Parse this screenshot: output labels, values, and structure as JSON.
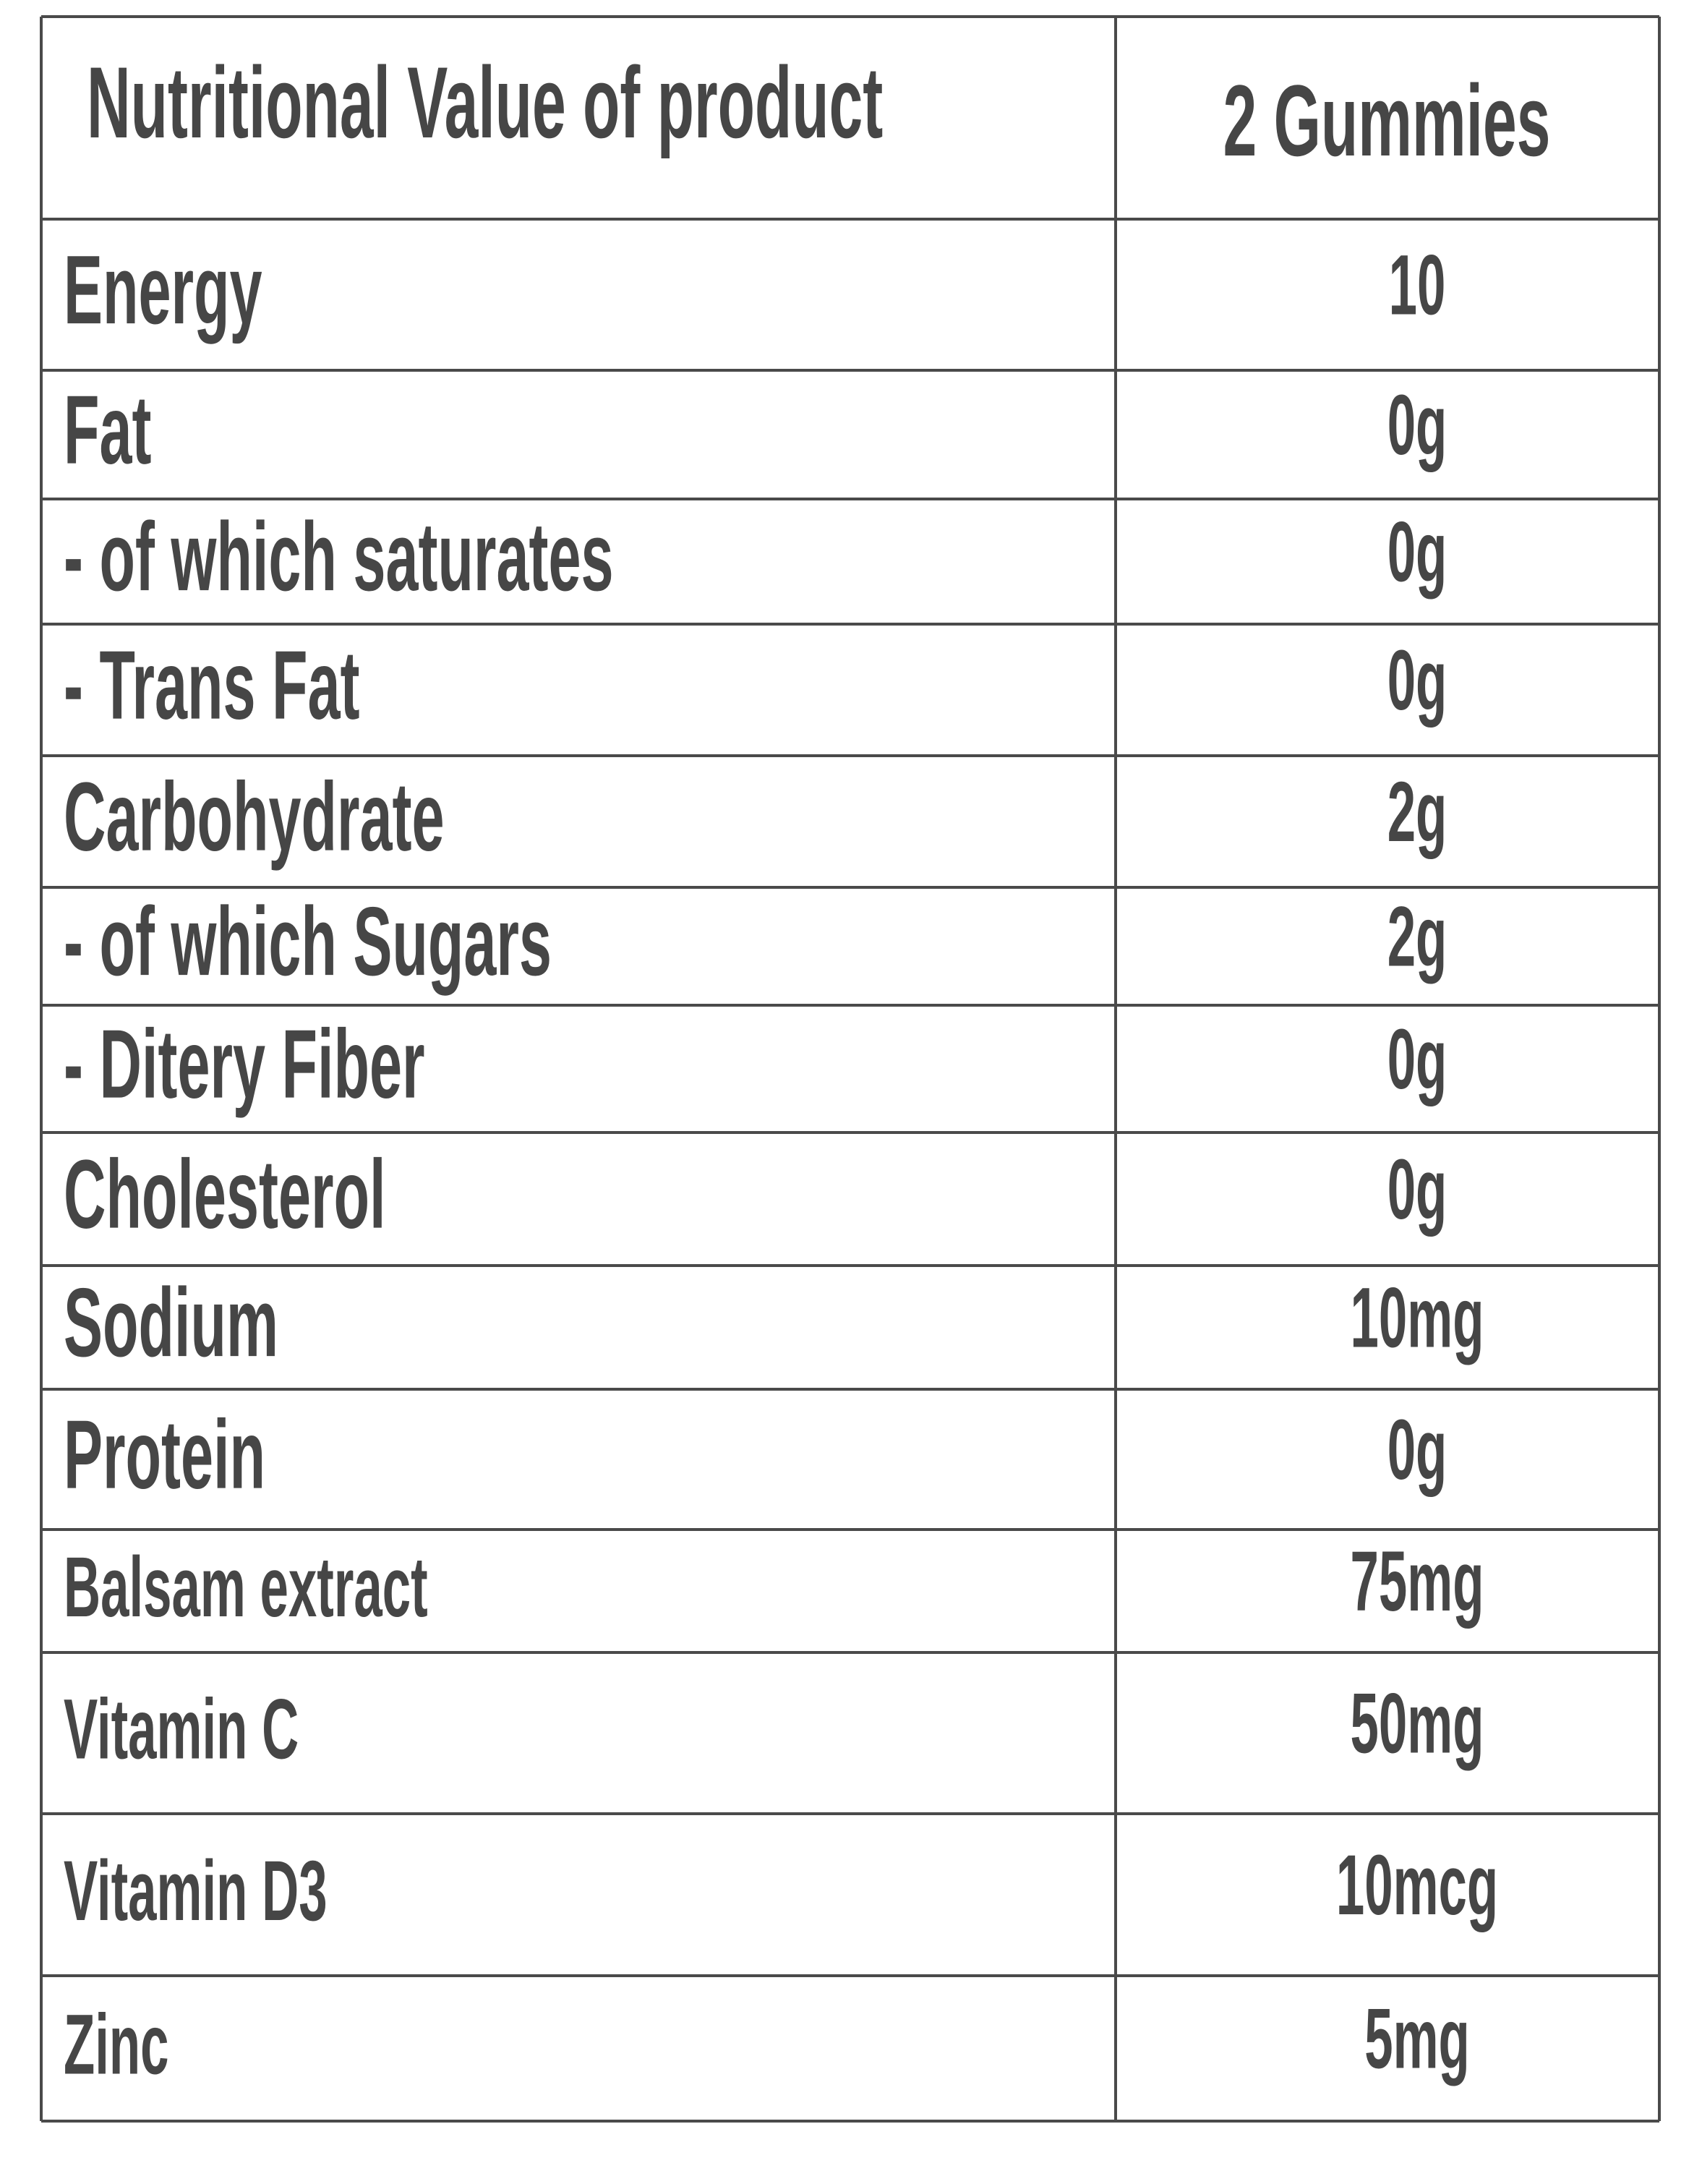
{
  "table": {
    "header": [
      "Nutritional Value of product",
      "2 Gummies"
    ],
    "rows": [
      [
        "Energy",
        "10"
      ],
      [
        "Fat",
        "0g"
      ],
      [
        "- of which saturates",
        "0g"
      ],
      [
        "- Trans Fat",
        "0g"
      ],
      [
        "Carbohydrate",
        "2g"
      ],
      [
        "- of which Sugars",
        "2g"
      ],
      [
        "- Ditery Fiber",
        "0g"
      ],
      [
        "Cholesterol",
        "0g"
      ],
      [
        "Sodium",
        "10mg"
      ],
      [
        "Protein",
        "0g"
      ],
      [
        "Balsam extract",
        "75mg"
      ],
      [
        "Vitamin C",
        "50mg"
      ],
      [
        "Vitamin D3",
        "10mcg"
      ],
      [
        "Zinc",
        "5mg"
      ]
    ]
  }
}
